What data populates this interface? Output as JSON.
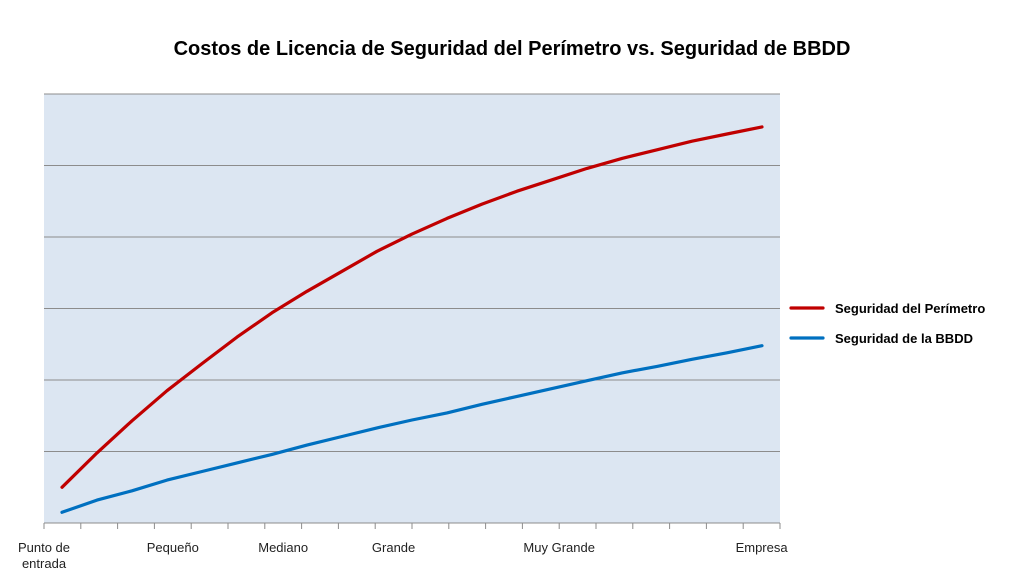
{
  "chart_data": {
    "type": "line",
    "title": "Costos de Licencia de Seguridad del Perímetro vs. Seguridad de BBDD",
    "xlabel": "",
    "ylabel": "",
    "categories": [
      [
        "Punto de",
        "entrada"
      ],
      [
        "Pequeño"
      ],
      [
        "Mediano"
      ],
      [
        "Grande"
      ],
      [
        "Muy Grande"
      ],
      [
        "Empresa"
      ]
    ],
    "category_positions": [
      0,
      3.5,
      6.5,
      9.5,
      14,
      19.5
    ],
    "x": [
      0,
      1,
      2,
      3,
      4,
      5,
      6,
      7,
      8,
      9,
      10,
      11,
      12,
      13,
      14,
      15,
      16,
      17,
      18,
      19,
      20
    ],
    "ylim": [
      0,
      6
    ],
    "y_gridlines": 6,
    "grid": true,
    "legend_position": "right",
    "plot_background": "#dce6f2",
    "series": [
      {
        "name": "Seguridad del Perímetro",
        "color": "#c00000",
        "values": [
          0.5,
          0.98,
          1.43,
          1.85,
          2.23,
          2.6,
          2.94,
          3.24,
          3.52,
          3.8,
          4.04,
          4.26,
          4.46,
          4.64,
          4.8,
          4.96,
          5.1,
          5.22,
          5.34,
          5.44,
          5.54
        ]
      },
      {
        "name": "Seguridad de la BBDD",
        "color": "#0070c0",
        "values": [
          0.15,
          0.32,
          0.45,
          0.6,
          0.72,
          0.84,
          0.96,
          1.09,
          1.21,
          1.33,
          1.44,
          1.54,
          1.66,
          1.77,
          1.88,
          1.99,
          2.1,
          2.19,
          2.29,
          2.38,
          2.48
        ]
      }
    ]
  }
}
